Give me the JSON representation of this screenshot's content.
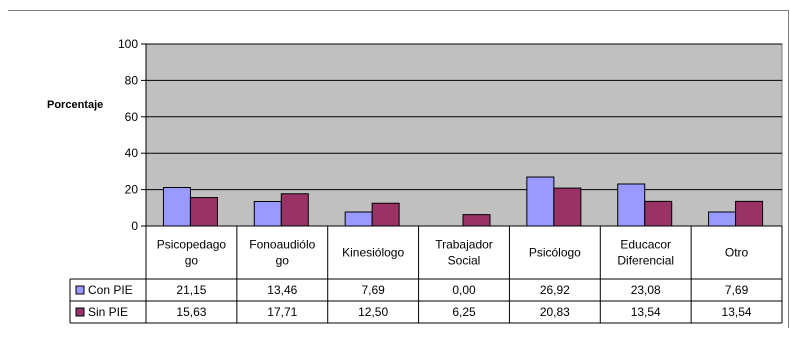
{
  "chart_data": {
    "type": "bar",
    "ylabel": "Porcentaje",
    "ylim": [
      0,
      100
    ],
    "yticks": [
      0,
      20,
      40,
      60,
      80,
      100
    ],
    "grid": true,
    "categories": [
      [
        "Psicopedago",
        "go"
      ],
      [
        "Fonoaudiólo",
        "go"
      ],
      [
        "Kinesiólogo"
      ],
      [
        "Trabajador",
        "Social"
      ],
      [
        "Psicólogo"
      ],
      [
        "Educacor",
        "Diferencial"
      ],
      [
        "Otro"
      ]
    ],
    "series": [
      {
        "name": "Con PIE",
        "color": "#9999ff",
        "values": [
          21.15,
          13.46,
          7.69,
          0.0,
          26.92,
          23.08,
          7.69
        ],
        "labels": [
          "21,15",
          "13,46",
          "7,69",
          "0,00",
          "26,92",
          "23,08",
          "7,69"
        ]
      },
      {
        "name": "Sin PIE",
        "color": "#993366",
        "values": [
          15.63,
          17.71,
          12.5,
          6.25,
          20.83,
          13.54,
          13.54
        ],
        "labels": [
          "15,63",
          "17,71",
          "12,50",
          "6,25",
          "20,83",
          "13,54",
          "13,54"
        ]
      }
    ],
    "plot_background": "#c0c0c0"
  }
}
